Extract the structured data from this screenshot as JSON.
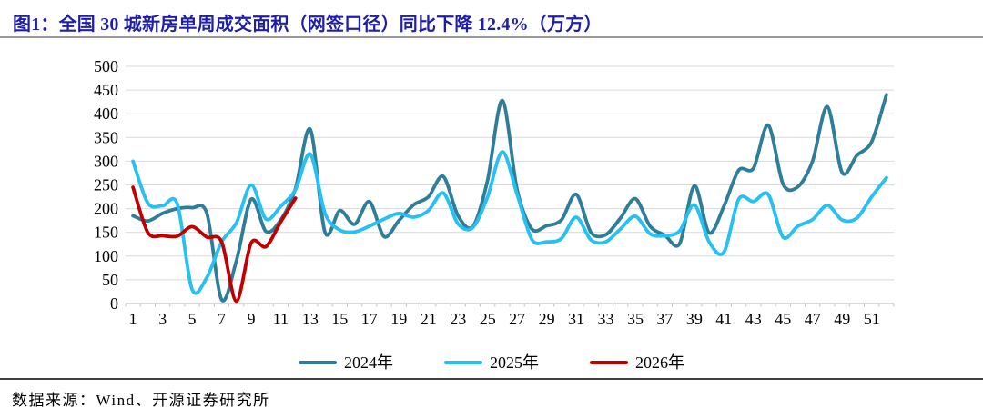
{
  "header": {
    "title": "图1：全国 30 城新房单周成交面积（网签口径）同比下降 12.4%（万方）"
  },
  "footer": {
    "source": "数据来源：Wind、开源证券研究所"
  },
  "colors": {
    "title_accent": "#1E1EA8",
    "gridline": "#D9D9D9",
    "axis_line": "#BFBFBF",
    "tick_label": "#000000",
    "top_rule": "#9A9A9A",
    "bottom_rule": "#3F3F3F"
  },
  "chart_data": {
    "type": "line",
    "title": "全国30城新房单周成交面积（网签口径）同比下降12.4%（万方）",
    "xlabel": "",
    "ylabel": "",
    "x_unit": "week",
    "x_range": [
      1,
      52
    ],
    "x_tick_labels": [
      1,
      3,
      5,
      7,
      9,
      11,
      13,
      15,
      17,
      19,
      21,
      23,
      25,
      27,
      29,
      31,
      33,
      35,
      37,
      39,
      41,
      43,
      45,
      47,
      49,
      51
    ],
    "ylim": [
      0,
      500
    ],
    "y_ticks": [
      0,
      50,
      100,
      150,
      200,
      250,
      300,
      350,
      400,
      450,
      500
    ],
    "grid": true,
    "legend_position": "bottom",
    "series": [
      {
        "name": "2024年",
        "color": "#2F7E99",
        "values": [
          185,
          174,
          190,
          200,
          202,
          190,
          8,
          90,
          220,
          152,
          176,
          243,
          367,
          150,
          196,
          167,
          215,
          141,
          175,
          208,
          225,
          268,
          185,
          162,
          260,
          428,
          240,
          157,
          164,
          176,
          230,
          150,
          145,
          180,
          221,
          163,
          144,
          126,
          248,
          149,
          205,
          281,
          285,
          376,
          252,
          246,
          300,
          415,
          276,
          312,
          341,
          440
        ]
      },
      {
        "name": "2025年",
        "color": "#27C0F2",
        "values": [
          300,
          212,
          206,
          210,
          30,
          55,
          130,
          170,
          250,
          178,
          205,
          240,
          315,
          190,
          155,
          151,
          163,
          178,
          190,
          182,
          196,
          233,
          168,
          160,
          225,
          320,
          230,
          135,
          130,
          137,
          182,
          134,
          130,
          157,
          184,
          147,
          143,
          153,
          208,
          130,
          108,
          220,
          215,
          230,
          140,
          163,
          177,
          207,
          176,
          180,
          225,
          265
        ]
      },
      {
        "name": "2026年",
        "color": "#C00000",
        "values": [
          245,
          150,
          143,
          142,
          162,
          140,
          130,
          5,
          128,
          120,
          172,
          222
        ]
      }
    ]
  }
}
